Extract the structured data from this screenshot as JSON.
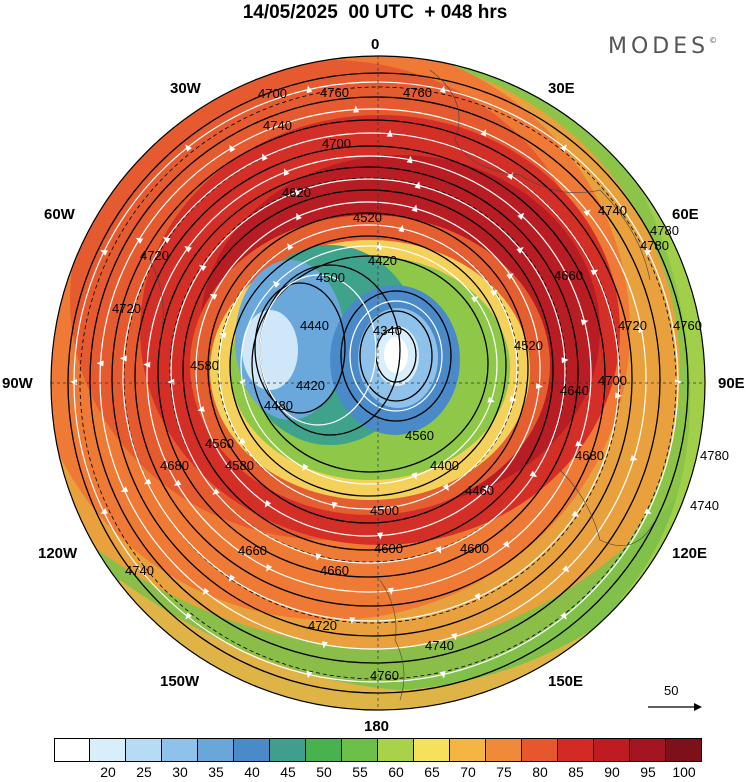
{
  "title": "14/05/2025  00 UTC  + 048 hrs",
  "brand": "MODES",
  "brand_mark": "©",
  "longitude_labels": {
    "n": "0",
    "ne30": "30E",
    "ne60": "60E",
    "e90": "90E",
    "se120": "120E",
    "se150": "150E",
    "s180": "180",
    "sw150": "150W",
    "sw120": "120W",
    "w90": "90W",
    "nw60": "60W",
    "nw30": "30W"
  },
  "contour_labels": [
    "4760",
    "4740",
    "4700",
    "4620",
    "4520",
    "4420",
    "4340",
    "4500",
    "4440",
    "4420",
    "4480",
    "4580",
    "4680",
    "4720",
    "4580",
    "4660",
    "4740",
    "4700",
    "4760",
    "4780",
    "4720",
    "4760",
    "4780",
    "4740",
    "4700",
    "4680",
    "4600",
    "4600",
    "4660",
    "4560",
    "4500",
    "4460",
    "4400",
    "4720",
    "4740",
    "4760",
    "4640",
    "4520",
    "4660",
    "4740",
    "4780",
    "4720",
    "4560"
  ],
  "colorbar": {
    "ticks": [
      "20",
      "25",
      "30",
      "35",
      "40",
      "45",
      "50",
      "55",
      "60",
      "65",
      "70",
      "75",
      "80",
      "85",
      "90",
      "95",
      "100"
    ],
    "colors": [
      "#ffffff",
      "#d9eefb",
      "#b6dcf5",
      "#8fc2ea",
      "#69a6da",
      "#4a8ac8",
      "#3f9e8e",
      "#48b24f",
      "#6cc04a",
      "#a9d24a",
      "#f5e15a",
      "#f5b545",
      "#ef8a3a",
      "#e6572e",
      "#d42a26",
      "#bf1b22",
      "#a31621",
      "#7d1019"
    ]
  },
  "reference_vector": {
    "value": "50"
  }
}
